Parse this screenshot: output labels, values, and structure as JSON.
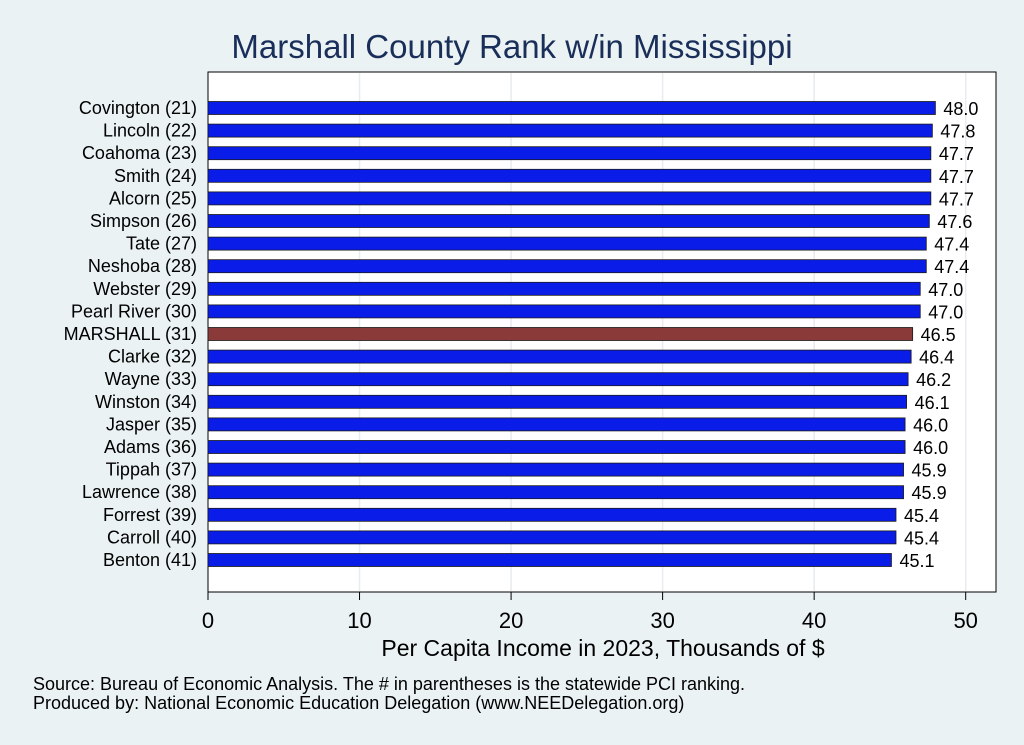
{
  "chart_data": {
    "type": "bar",
    "orientation": "horizontal",
    "title": "Marshall County Rank w/in Mississippi",
    "xlabel": "Per Capita Income in 2023, Thousands of $",
    "xlim": [
      0,
      52
    ],
    "xticks": [
      0,
      10,
      20,
      30,
      40,
      50
    ],
    "grid": true,
    "categories": [
      "Covington (21)",
      "Lincoln (22)",
      "Coahoma (23)",
      "Smith (24)",
      "Alcorn (25)",
      "Simpson (26)",
      "Tate (27)",
      "Neshoba (28)",
      "Webster (29)",
      "Pearl River (30)",
      "MARSHALL (31)",
      "Clarke (32)",
      "Wayne (33)",
      "Winston (34)",
      "Jasper (35)",
      "Adams (36)",
      "Tippah (37)",
      "Lawrence (38)",
      "Forrest (39)",
      "Carroll (40)",
      "Benton (41)"
    ],
    "values": [
      48.0,
      47.8,
      47.7,
      47.7,
      47.7,
      47.6,
      47.4,
      47.4,
      47.0,
      47.0,
      46.5,
      46.4,
      46.2,
      46.1,
      46.0,
      46.0,
      45.9,
      45.9,
      45.4,
      45.4,
      45.1
    ],
    "value_labels": [
      "48.0",
      "47.8",
      "47.7",
      "47.7",
      "47.7",
      "47.6",
      "47.4",
      "47.4",
      "47.0",
      "47.0",
      "46.5",
      "46.4",
      "46.2",
      "46.1",
      "46.0",
      "46.0",
      "45.9",
      "45.9",
      "45.4",
      "45.4",
      "45.1"
    ],
    "bar_color": "#0a1ce8",
    "highlight_index": 10,
    "highlight_color": "#8b3a3a"
  },
  "notes": {
    "source": "Source: Bureau of Economic Analysis. The # in parentheses is the statewide PCI ranking.",
    "producer": "Produced by: National Economic Education Delegation (www.NEEDelegation.org)"
  }
}
